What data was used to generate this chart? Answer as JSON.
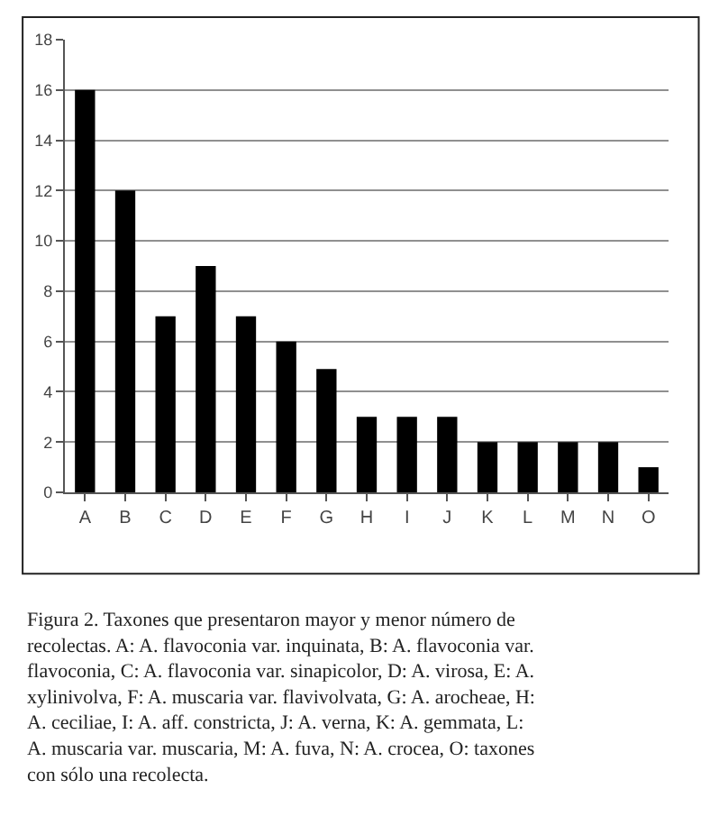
{
  "chart_data": {
    "type": "bar",
    "categories": [
      "A",
      "B",
      "C",
      "D",
      "E",
      "F",
      "G",
      "H",
      "I",
      "J",
      "K",
      "L",
      "M",
      "N",
      "O"
    ],
    "values": [
      16,
      12,
      7,
      9,
      7,
      6,
      4.9,
      3,
      3,
      3,
      2,
      2,
      2,
      2,
      1
    ],
    "color": "#000000",
    "ylim": [
      0,
      18
    ],
    "yticks": [
      0,
      2,
      4,
      6,
      8,
      10,
      12,
      14,
      16,
      18
    ],
    "grid": "y",
    "annotations": [
      "Figura 2. Taxones que presentaron mayor y menor número de recolectas. A: A. flavoconia var. inquinata, B: A. flavoconia var. flavoconia, C: A. flavoconia var. sinapicolor, D: A. virosa, E: A. xylinivolva, F: A. muscaria var. flavivolvata, G: A. arocheae, H: A. ceciliae, I: A. aff. constricta, J: A. verna, K: A. gemmata, L: A. muscaria var. muscaria, M: A. fuva, N: A. crocea, O: taxones con sólo una recolecta."
    ]
  }
}
